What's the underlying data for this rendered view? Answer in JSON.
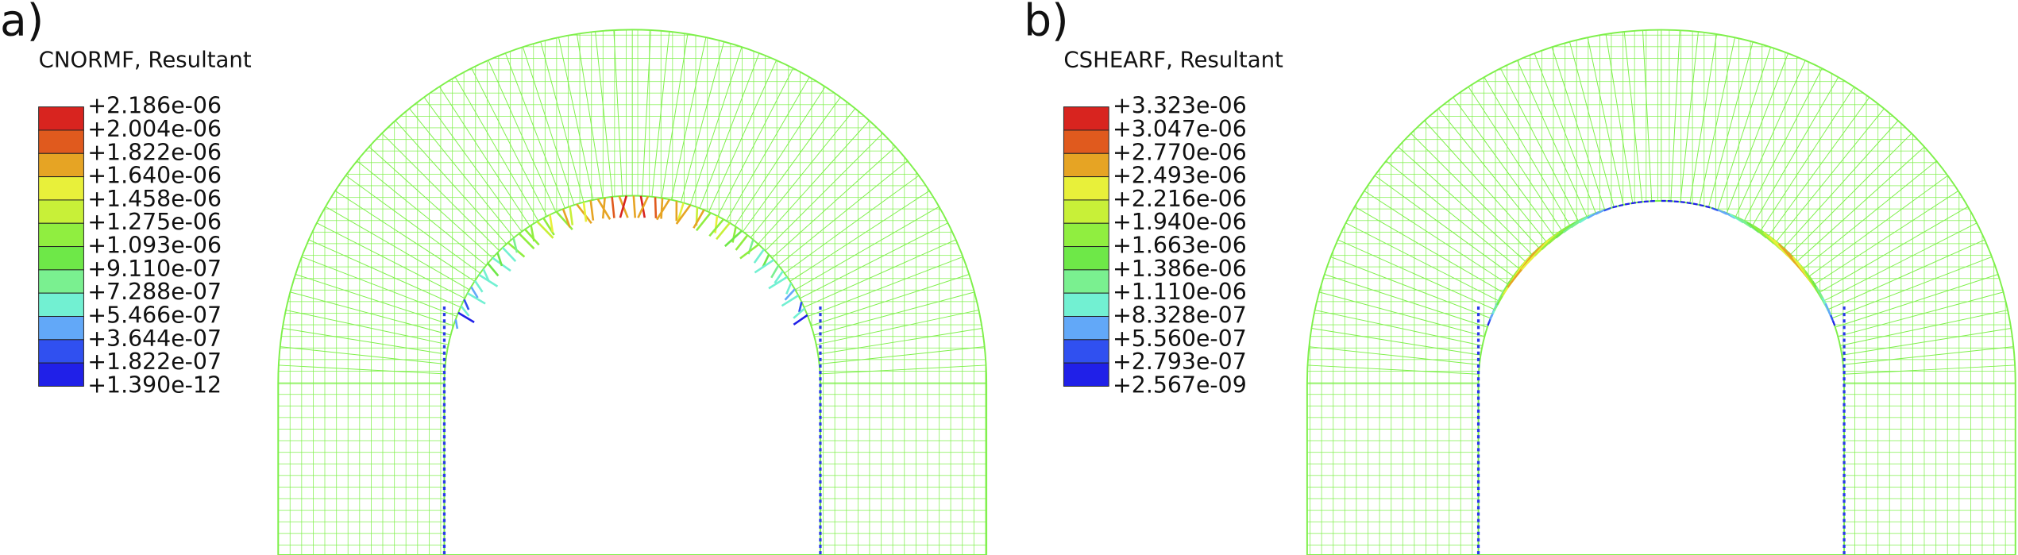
{
  "panels": [
    {
      "label": "a)",
      "title": "CNORMF, Resultant",
      "legend": [
        "+2.186e-06",
        "+2.004e-06",
        "+1.822e-06",
        "+1.640e-06",
        "+1.458e-06",
        "+1.275e-06",
        "+1.093e-06",
        "+9.110e-07",
        "+7.288e-07",
        "+5.466e-07",
        "+3.644e-07",
        "+1.822e-07",
        "+1.390e-12"
      ]
    },
    {
      "label": "b)",
      "title": "CSHEARF, Resultant",
      "legend": [
        "+3.323e-06",
        "+3.047e-06",
        "+2.770e-06",
        "+2.493e-06",
        "+2.216e-06",
        "+1.940e-06",
        "+1.663e-06",
        "+1.386e-06",
        "+1.110e-06",
        "+8.328e-07",
        "+5.560e-07",
        "+2.793e-07",
        "+2.567e-09"
      ]
    }
  ]
}
